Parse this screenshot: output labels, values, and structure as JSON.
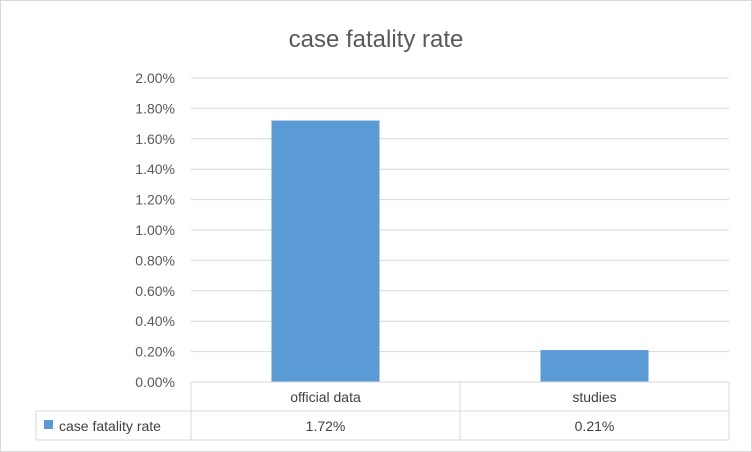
{
  "chart_data": {
    "type": "bar",
    "title": "case fatality rate",
    "categories": [
      "official data",
      "studies"
    ],
    "series": [
      {
        "name": "case fatality rate",
        "values": [
          0.0172,
          0.0021
        ],
        "display_values": [
          "1.72%",
          "0.21%"
        ],
        "color": "#5b9bd5"
      }
    ],
    "ylim": [
      0,
      0.02
    ],
    "y_ticks": [
      "0.00%",
      "0.20%",
      "0.40%",
      "0.60%",
      "0.80%",
      "1.00%",
      "1.20%",
      "1.40%",
      "1.60%",
      "1.80%",
      "2.00%"
    ],
    "grid": true,
    "legend": "data-table"
  }
}
